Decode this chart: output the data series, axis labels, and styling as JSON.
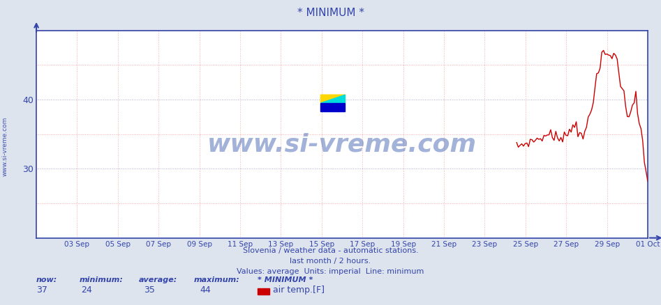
{
  "title": "* MINIMUM *",
  "subtitle1": "Slovenia / weather data - automatic stations.",
  "subtitle2": "last month / 2 hours.",
  "subtitle3": "Values: average  Units: imperial  Line: minimum",
  "bg_color": "#dde4ee",
  "plot_bg_color": "#ffffff",
  "line_color": "#cc0000",
  "axis_color": "#3344aa",
  "grid_color_v": "#ffaaaa",
  "grid_color_h": "#ffaaaa",
  "grid_color_labeled": "#aaaacc",
  "title_color": "#3344aa",
  "watermark_text": "www.si-vreme.com",
  "watermark_color": "#3355aa",
  "ylim_min": 20,
  "ylim_max": 50,
  "ytick_labeled": [
    30,
    40
  ],
  "stats_now": 37,
  "stats_min": 24,
  "stats_avg": 35,
  "stats_max": 44,
  "stats_label": "* MINIMUM *",
  "legend_label": "air temp.[F]",
  "legend_color": "#cc0000",
  "x_tick_labels": [
    "03 Sep",
    "05 Sep",
    "07 Sep",
    "09 Sep",
    "11 Sep",
    "13 Sep",
    "15 Sep",
    "17 Sep",
    "19 Sep",
    "21 Sep",
    "23 Sep",
    "25 Sep",
    "27 Sep",
    "29 Sep",
    "01 Oct"
  ],
  "left_label": "www.si-vreme.com"
}
